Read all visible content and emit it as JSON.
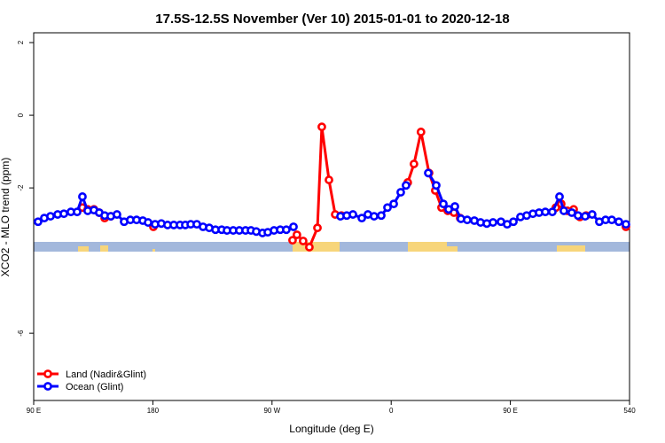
{
  "chart_data": {
    "type": "line",
    "title": "17.5S-12.5S November (Ver 10)   2015-01-01 to 2020-12-18",
    "x_label": "Longitude (deg E)",
    "y_label": "XCO2 - MLO trend (ppm)",
    "xlim": [
      90,
      540
    ],
    "ylim": [
      -7.85,
      2.27
    ],
    "xticks": [
      {
        "value": 90,
        "label": "90 E"
      },
      180,
      {
        "value": 270,
        "label": "90 W"
      },
      {
        "value": 360,
        "label": "0"
      },
      {
        "value": 450,
        "label": "90 E"
      },
      540
    ],
    "yticks": [
      -6,
      -2,
      0,
      2
    ],
    "legend": "bottom-left",
    "series": [
      {
        "name": "Land (Nadir&Glint)",
        "color": "#ff0000",
        "x": [
          126.8,
          130.8,
          135.5,
          139.5,
          143.6,
          148.2,
          null,
          180.4,
          null,
          285.5,
          288.8,
          293.5,
          298.2,
          304.3,
          307.6,
          313.0,
          317.7,
          322.4,
          null,
          372.5,
          377.2,
          382.5,
          388.6,
          393.3,
          398.0,
          402.7,
          407.4,
          412.1,
          null,
          484.4,
          488.4,
          493.1,
          497.8,
          502.5,
          507.2,
          null,
          537.3
        ],
        "values": [
          -2.54,
          -2.59,
          -2.59,
          -2.68,
          -2.83,
          -2.78,
          null,
          -3.07,
          null,
          -3.44,
          -3.29,
          -3.46,
          -3.63,
          -3.1,
          -0.32,
          -1.78,
          -2.73,
          -2.76,
          null,
          -1.85,
          -1.34,
          -0.46,
          -1.59,
          -2.07,
          -2.54,
          -2.63,
          -2.68,
          -2.83,
          null,
          -2.54,
          -2.44,
          -2.63,
          -2.59,
          -2.8,
          -2.76,
          null,
          -3.07
        ]
      },
      {
        "name": "Ocean (Glint)",
        "color": "#0000ff",
        "x": [
          93.3,
          98.0,
          102.7,
          108.1,
          112.8,
          118.1,
          122.8,
          126.8,
          130.8,
          135.5,
          139.5,
          143.6,
          148.2,
          152.9,
          158.3,
          163.0,
          167.7,
          172.4,
          176.4,
          181.7,
          186.4,
          191.1,
          195.8,
          200.5,
          204.5,
          208.6,
          213.2,
          217.9,
          222.6,
          227.3,
          232.0,
          236.0,
          240.7,
          245.3,
          250.0,
          254.1,
          258.1,
          262.8,
          266.8,
          271.5,
          276.2,
          280.8,
          286.2,
          null,
          321.7,
          326.4,
          331.1,
          337.8,
          342.4,
          347.1,
          352.5,
          357.2,
          361.9,
          367.2,
          371.2,
          null,
          388.0,
          394.0,
          399.4,
          403.4,
          408.1,
          412.7,
          417.4,
          422.8,
          427.5,
          432.2,
          436.9,
          442.9,
          447.6,
          452.3,
          457.6,
          462.3,
          467.0,
          471.7,
          476.4,
          481.7,
          487.1,
          490.4,
          496.4,
          501.1,
          506.5,
          511.8,
          517.2,
          521.9,
          526.6,
          531.9,
          537.3
        ],
        "values": [
          -2.93,
          -2.83,
          -2.78,
          -2.73,
          -2.71,
          -2.66,
          -2.66,
          -2.24,
          -2.63,
          -2.61,
          -2.68,
          -2.76,
          -2.78,
          -2.73,
          -2.93,
          -2.88,
          -2.88,
          -2.9,
          -2.95,
          -3.0,
          -2.98,
          -3.02,
          -3.02,
          -3.02,
          -3.02,
          -3.0,
          -3.0,
          -3.07,
          -3.1,
          -3.15,
          -3.15,
          -3.17,
          -3.17,
          -3.17,
          -3.17,
          -3.17,
          -3.2,
          -3.24,
          -3.22,
          -3.17,
          -3.15,
          -3.15,
          -3.07,
          null,
          -2.78,
          -2.76,
          -2.73,
          -2.83,
          -2.73,
          -2.78,
          -2.76,
          -2.54,
          -2.44,
          -2.12,
          -1.93,
          null,
          -1.59,
          -1.93,
          -2.44,
          -2.59,
          -2.51,
          -2.85,
          -2.88,
          -2.9,
          -2.95,
          -2.98,
          -2.95,
          -2.93,
          -3.0,
          -2.93,
          -2.8,
          -2.76,
          -2.71,
          -2.68,
          -2.66,
          -2.66,
          -2.24,
          -2.63,
          -2.68,
          -2.76,
          -2.78,
          -2.73,
          -2.93,
          -2.88,
          -2.88,
          -2.93,
          -3.0
        ]
      }
    ]
  }
}
